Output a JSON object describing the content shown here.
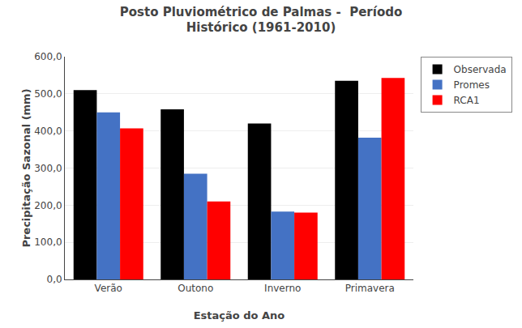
{
  "chart_data": {
    "type": "bar",
    "title": "Posto Pluviométrico de Palmas -  Período\nHistórico (1961-2010)",
    "x_label": "Estação do Ano",
    "y_label": "Precipitação Sazonal (mm)",
    "categories": [
      "Verão",
      "Outono",
      "Inverno",
      "Primavera"
    ],
    "series": [
      {
        "name": "Observada",
        "color": "#000000",
        "values": [
          510,
          458,
          420,
          535
        ]
      },
      {
        "name": "Promes",
        "color": "#4472C4",
        "values": [
          450,
          285,
          183,
          382
        ]
      },
      {
        "name": "RCA1",
        "color": "#FF0000",
        "values": [
          407,
          210,
          180,
          543
        ]
      }
    ],
    "ylim": [
      0,
      600
    ],
    "yticks": [
      {
        "value": 0,
        "label": "0,0"
      },
      {
        "value": 100,
        "label": "100,0"
      },
      {
        "value": 200,
        "label": "200,0"
      },
      {
        "value": 300,
        "label": "300,0"
      },
      {
        "value": 400,
        "label": "400,0"
      },
      {
        "value": 500,
        "label": "500,0"
      },
      {
        "value": 600,
        "label": "600,0"
      }
    ],
    "grid": true,
    "legend": "upper right"
  }
}
